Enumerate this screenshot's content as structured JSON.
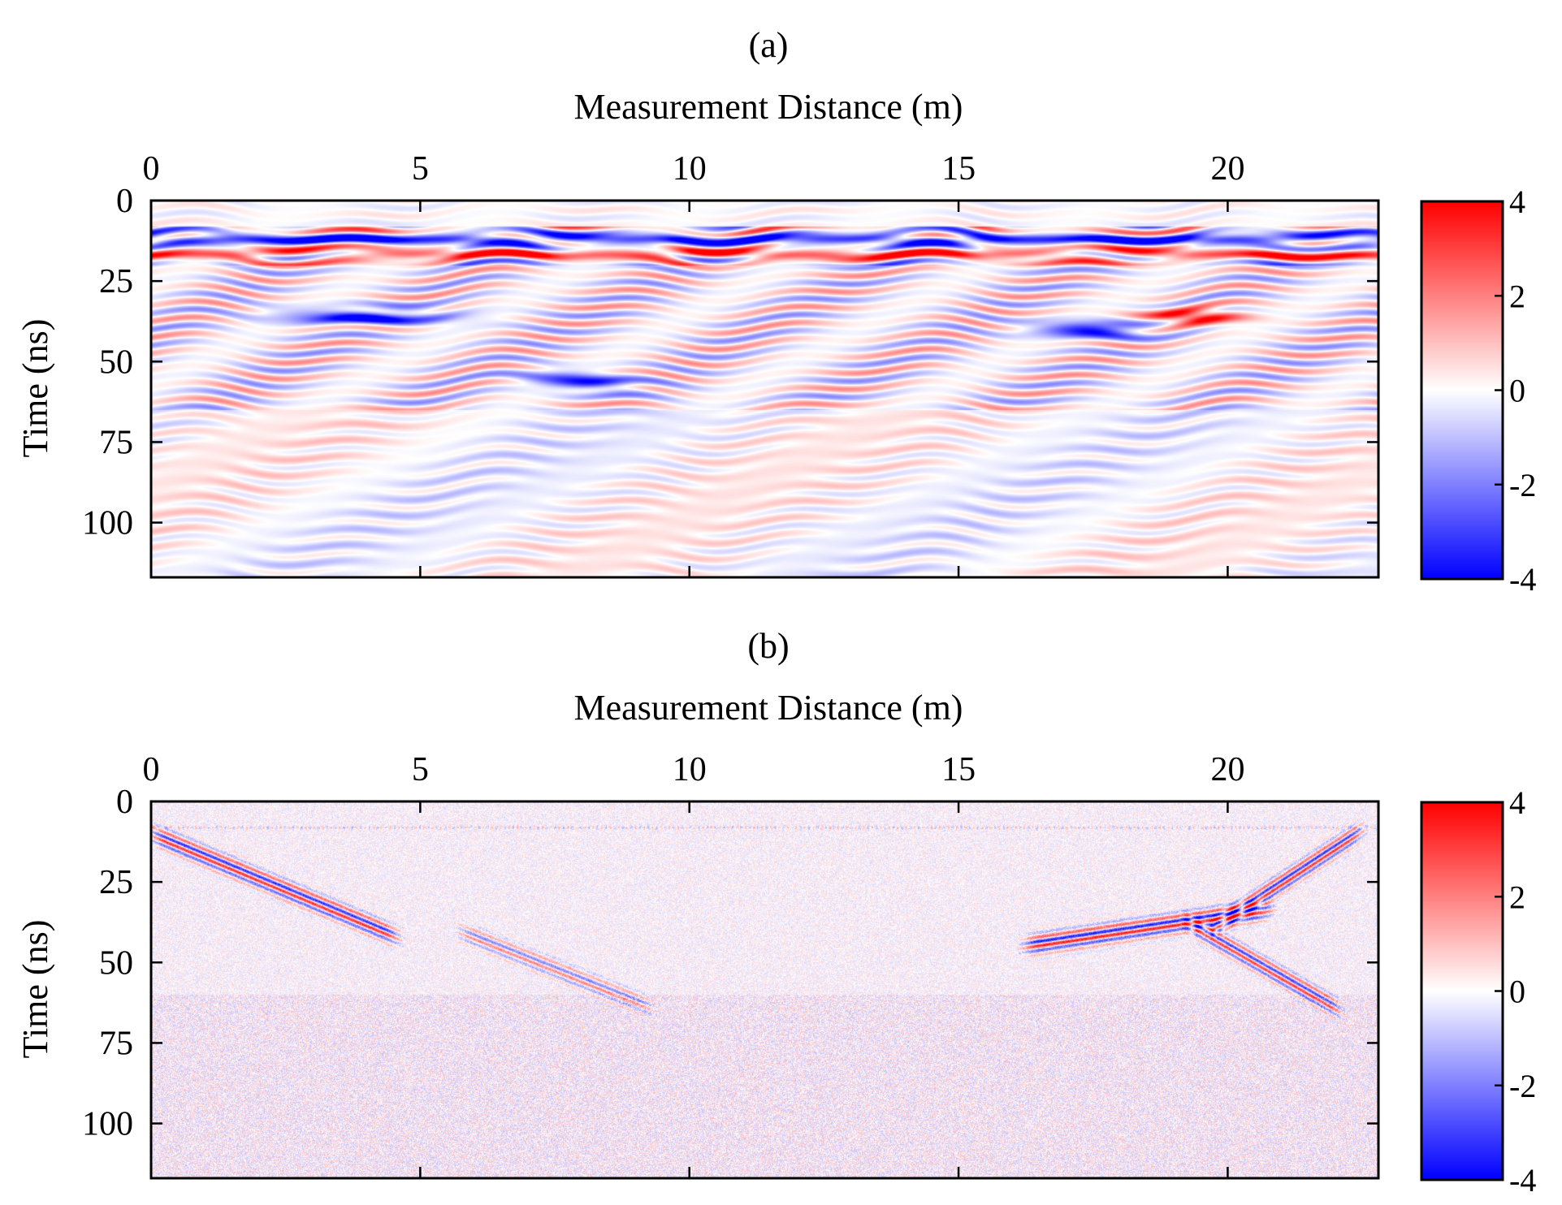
{
  "chart_data": [
    {
      "type": "heatmap",
      "panel_label": "(a)",
      "xlabel": "Measurement Distance (m)",
      "ylabel": "Time (ns)",
      "x_ticks": [
        0,
        5,
        10,
        15,
        20
      ],
      "y_ticks": [
        0,
        25,
        50,
        75,
        100
      ],
      "xlim": [
        0,
        22.8
      ],
      "ylim": [
        0,
        117
      ],
      "y_reversed": true,
      "x_axis_position": "top",
      "colorbar": {
        "ticks": [
          4,
          2,
          0,
          -2,
          -4
        ],
        "range": [
          -4,
          4
        ],
        "colormap": "blue-white-red"
      },
      "colors": {
        "positive": "#ff0000",
        "zero": "#ffffff",
        "negative": "#0000ff"
      },
      "features": [
        {
          "x": [
            0,
            22.8
          ],
          "t": 12,
          "amp": -3.2,
          "kind": "horizontal band"
        },
        {
          "x": [
            0,
            22.8
          ],
          "t": 16,
          "amp": 2.6,
          "kind": "horizontal band"
        },
        {
          "x": [
            2.5,
            5.5
          ],
          "t": 36,
          "amp": -3.5,
          "kind": "strong anomaly"
        },
        {
          "x": [
            7,
            9
          ],
          "t": 56,
          "amp": -3.5,
          "kind": "dipping reflector"
        },
        {
          "x": [
            16.5,
            18.5
          ],
          "t": 40,
          "amp": -3.8,
          "kind": "strong anomaly"
        },
        {
          "x": [
            18.5,
            20.2
          ],
          "t": 36,
          "amp": 3.8,
          "kind": "strong anomaly"
        }
      ]
    },
    {
      "type": "heatmap",
      "panel_label": "(b)",
      "xlabel": "Measurement Distance (m)",
      "ylabel": "Time (ns)",
      "x_ticks": [
        0,
        5,
        10,
        15,
        20
      ],
      "y_ticks": [
        0,
        25,
        50,
        75,
        100
      ],
      "xlim": [
        0,
        22.8
      ],
      "ylim": [
        0,
        117
      ],
      "y_reversed": true,
      "x_axis_position": "top",
      "colorbar": {
        "ticks": [
          4,
          2,
          0,
          -2,
          -4
        ],
        "range": [
          -4,
          4
        ],
        "colormap": "blue-white-red"
      },
      "colors": {
        "positive": "#ff0000",
        "zero": "#ffffff",
        "negative": "#0000ff"
      },
      "features": [
        {
          "x": [
            0.3,
            4.3
          ],
          "t": [
            12,
            40
          ],
          "amp": 3.5,
          "kind": "diffraction limb"
        },
        {
          "x": [
            16.5,
            20.5
          ],
          "t": [
            44,
            34
          ],
          "amp": 3.8,
          "kind": "diffraction limb"
        },
        {
          "x": [
            20.0,
            22.2
          ],
          "t": [
            36,
            12
          ],
          "amp": 3.5,
          "kind": "diffraction limb"
        },
        {
          "x": [
            19.5,
            21.8
          ],
          "t": [
            40,
            62
          ],
          "amp": 3.2,
          "kind": "diffraction limb"
        },
        {
          "x": [
            6.0,
            9.0
          ],
          "t": [
            42,
            62
          ],
          "amp": 2.0,
          "kind": "weak hyperbola"
        }
      ]
    }
  ]
}
